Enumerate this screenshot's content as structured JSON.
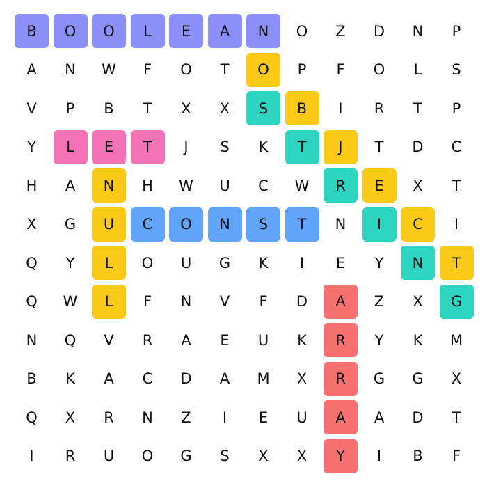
{
  "puzzle": {
    "rows": [
      [
        "B",
        "O",
        "O",
        "L",
        "E",
        "A",
        "N",
        "O",
        "Z",
        "D",
        "N",
        "P"
      ],
      [
        "A",
        "N",
        "W",
        "F",
        "O",
        "T",
        "O",
        "P",
        "F",
        "O",
        "L",
        "S"
      ],
      [
        "V",
        "P",
        "B",
        "T",
        "X",
        "X",
        "S",
        "B",
        "I",
        "R",
        "T",
        "P"
      ],
      [
        "Y",
        "L",
        "E",
        "T",
        "J",
        "S",
        "K",
        "T",
        "J",
        "T",
        "D",
        "C"
      ],
      [
        "H",
        "A",
        "N",
        "H",
        "W",
        "U",
        "C",
        "W",
        "R",
        "E",
        "X",
        "T"
      ],
      [
        "X",
        "G",
        "U",
        "C",
        "O",
        "N",
        "S",
        "T",
        "N",
        "I",
        "C",
        "I"
      ],
      [
        "Q",
        "Y",
        "L",
        "O",
        "U",
        "G",
        "K",
        "I",
        "E",
        "Y",
        "N",
        "T"
      ],
      [
        "Q",
        "W",
        "L",
        "F",
        "N",
        "V",
        "F",
        "D",
        "A",
        "Z",
        "X",
        "G"
      ],
      [
        "N",
        "Q",
        "V",
        "R",
        "A",
        "E",
        "U",
        "K",
        "R",
        "Y",
        "K",
        "M"
      ],
      [
        "B",
        "K",
        "A",
        "C",
        "D",
        "A",
        "M",
        "X",
        "R",
        "G",
        "G",
        "X"
      ],
      [
        "Q",
        "X",
        "R",
        "N",
        "Z",
        "I",
        "E",
        "U",
        "A",
        "A",
        "D",
        "T"
      ],
      [
        "I",
        "R",
        "U",
        "O",
        "G",
        "S",
        "X",
        "X",
        "Y",
        "I",
        "B",
        "F"
      ]
    ]
  },
  "highlights": [
    {
      "color": "#8b8ff8",
      "cells": [
        [
          0,
          0
        ],
        [
          0,
          1
        ],
        [
          0,
          2
        ],
        [
          0,
          3
        ],
        [
          0,
          4
        ],
        [
          0,
          5
        ],
        [
          0,
          6
        ]
      ]
    },
    {
      "color": "#fbc918",
      "cells": [
        [
          1,
          6
        ],
        [
          2,
          7
        ],
        [
          3,
          8
        ],
        [
          4,
          9
        ],
        [
          5,
          10
        ],
        [
          6,
          11
        ]
      ]
    },
    {
      "color": "#2dd4bf",
      "cells": [
        [
          2,
          6
        ],
        [
          3,
          7
        ],
        [
          4,
          8
        ],
        [
          5,
          9
        ],
        [
          6,
          10
        ],
        [
          7,
          11
        ]
      ]
    },
    {
      "color": "#f472b6",
      "cells": [
        [
          3,
          1
        ],
        [
          3,
          2
        ],
        [
          3,
          3
        ]
      ]
    },
    {
      "color": "#fbc918",
      "cells": [
        [
          4,
          2
        ],
        [
          5,
          2
        ],
        [
          6,
          2
        ],
        [
          7,
          2
        ]
      ]
    },
    {
      "color": "#60a5fa",
      "cells": [
        [
          5,
          3
        ],
        [
          5,
          4
        ],
        [
          5,
          5
        ],
        [
          5,
          6
        ],
        [
          5,
          7
        ]
      ]
    },
    {
      "color": "#f87171",
      "cells": [
        [
          7,
          8
        ],
        [
          8,
          8
        ],
        [
          9,
          8
        ],
        [
          10,
          8
        ],
        [
          11,
          8
        ]
      ]
    }
  ]
}
